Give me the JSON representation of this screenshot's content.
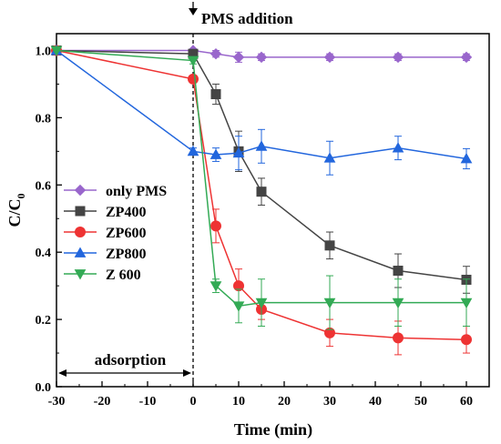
{
  "chart_data": {
    "type": "line",
    "xlabel": "Time (min)",
    "ylabel_main": "C/C",
    "ylabel_sub": "0",
    "xlim": [
      -30,
      65
    ],
    "ylim": [
      0.0,
      1.05
    ],
    "xticks": [
      -30,
      -20,
      -10,
      0,
      10,
      20,
      30,
      40,
      50,
      60
    ],
    "yticks": [
      "0.0",
      "0.2",
      "0.4",
      "0.6",
      "0.8",
      "1.0"
    ],
    "ytick_values": [
      0.0,
      0.2,
      0.4,
      0.6,
      0.8,
      1.0
    ],
    "annotations": {
      "pms_addition": "PMS addition",
      "adsorption": "adsorption"
    },
    "legend_position": "left-middle",
    "series": [
      {
        "name": "only PMS",
        "color": "#9966cc",
        "marker": "diamond",
        "x": [
          -30,
          0,
          5,
          10,
          15,
          30,
          45,
          60
        ],
        "y": [
          1.0,
          1.0,
          0.99,
          0.98,
          0.98,
          0.98,
          0.98,
          0.98
        ],
        "err": [
          0,
          0,
          0.01,
          0.015,
          0.01,
          0.01,
          0.01,
          0.01
        ]
      },
      {
        "name": "ZP400",
        "color": "#444444",
        "marker": "square",
        "x": [
          -30,
          0,
          5,
          10,
          15,
          30,
          45,
          60
        ],
        "y": [
          1.0,
          0.99,
          0.87,
          0.7,
          0.58,
          0.42,
          0.345,
          0.318
        ],
        "err": [
          0,
          0.01,
          0.03,
          0.06,
          0.04,
          0.04,
          0.05,
          0.04
        ]
      },
      {
        "name": "ZP600",
        "color": "#ee3333",
        "marker": "circle",
        "x": [
          -30,
          0,
          5,
          10,
          15,
          30,
          45,
          60
        ],
        "y": [
          1.0,
          0.915,
          0.478,
          0.3,
          0.23,
          0.16,
          0.145,
          0.14
        ],
        "err": [
          0,
          0.01,
          0.05,
          0.05,
          0.03,
          0.04,
          0.05,
          0.04
        ]
      },
      {
        "name": "ZP800",
        "color": "#2266dd",
        "marker": "triangle-up",
        "x": [
          -30,
          0,
          5,
          10,
          15,
          30,
          45,
          60
        ],
        "y": [
          1.0,
          0.7,
          0.69,
          0.695,
          0.715,
          0.68,
          0.71,
          0.678
        ],
        "err": [
          0,
          0.01,
          0.02,
          0.05,
          0.05,
          0.05,
          0.035,
          0.03
        ]
      },
      {
        "name": "Z 600",
        "color": "#33aa55",
        "marker": "triangle-down",
        "x": [
          -30,
          0,
          5,
          10,
          15,
          30,
          45,
          60
        ],
        "y": [
          1.0,
          0.97,
          0.3,
          0.24,
          0.25,
          0.25,
          0.25,
          0.25
        ],
        "err": [
          0,
          0.01,
          0.02,
          0.05,
          0.07,
          0.08,
          0.07,
          0.07
        ]
      }
    ]
  }
}
